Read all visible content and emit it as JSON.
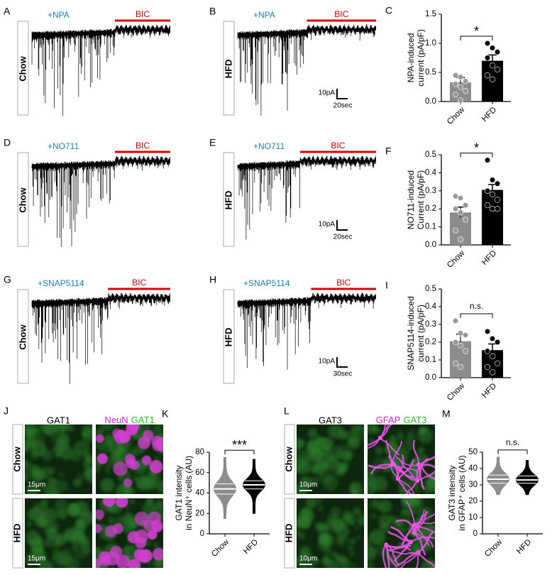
{
  "traces": [
    {
      "letter": "A",
      "drug": "+NPA",
      "blocker": "BIC",
      "group": "Chow"
    },
    {
      "letter": "B",
      "drug": "+NPA",
      "blocker": "BIC",
      "group": "HFD",
      "scale_y": "10pA",
      "scale_x": "20sec"
    },
    {
      "letter": "D",
      "drug": "+NO711",
      "blocker": "BIC",
      "group": "Chow"
    },
    {
      "letter": "E",
      "drug": "+NO711",
      "blocker": "BIC",
      "group": "HFD",
      "scale_y": "10pA",
      "scale_x": "20sec"
    },
    {
      "letter": "G",
      "drug": "+SNAP5114",
      "blocker": "BIC",
      "group": "Chow"
    },
    {
      "letter": "H",
      "drug": "+SNAP5114",
      "blocker": "BIC",
      "group": "HFD",
      "scale_y": "10pA",
      "scale_x": "30sec"
    }
  ],
  "images": [
    {
      "letter": "J",
      "header_left": "GAT1",
      "header_right": [
        "NeuN",
        "GAT1"
      ],
      "rows": [
        "Chow",
        "HFD"
      ],
      "scale": "15μm"
    },
    {
      "letter": "L",
      "header_left": "GAT3",
      "header_right": [
        "GFAP",
        "GAT3"
      ],
      "rows": [
        "Chow",
        "HFD"
      ],
      "scale": "10μm"
    }
  ],
  "chart_data": [
    {
      "type": "bar",
      "panel": "C",
      "ylabel": [
        "NPA-induced",
        "current (pA/pF)"
      ],
      "categories": [
        "Chow",
        "HFD"
      ],
      "values": [
        0.33,
        0.7
      ],
      "errors": [
        0.08,
        0.1
      ],
      "points": [
        [
          0.45,
          0.42,
          0.35,
          0.3,
          0.25,
          0.18,
          0.12,
          0.02
        ],
        [
          1.0,
          0.92,
          0.85,
          0.75,
          0.62,
          0.55,
          0.45,
          0.38
        ]
      ],
      "colors": [
        "#8c8c8c",
        "#000000"
      ],
      "ylim": [
        0,
        1.5
      ],
      "yticks": [
        {
          "value": 0,
          "label": "0.0"
        },
        0.5,
        {
          "value": 1,
          "label": "1.0"
        },
        1.5
      ],
      "significance": "*"
    },
    {
      "type": "bar",
      "panel": "F",
      "ylabel": [
        "NO711-induced",
        "Current (pA/pF)"
      ],
      "categories": [
        "Chow",
        "HFD"
      ],
      "values": [
        0.18,
        0.305
      ],
      "errors": [
        0.03,
        0.03
      ],
      "points": [
        [
          0.27,
          0.26,
          0.22,
          0.2,
          0.18,
          0.14,
          0.08,
          0.03
        ],
        [
          0.47,
          0.36,
          0.34,
          0.3,
          0.28,
          0.25,
          0.22,
          0.2,
          0.2
        ]
      ],
      "colors": [
        "#8c8c8c",
        "#000000"
      ],
      "ylim": [
        0,
        0.5
      ],
      "yticks": [
        {
          "value": 0,
          "label": "0.0"
        },
        0.1,
        0.2,
        0.3,
        0.4,
        0.5
      ],
      "significance": "*"
    },
    {
      "type": "bar",
      "panel": "I",
      "ylabel": [
        "SNAP5114-induced",
        "current (pA/pF)"
      ],
      "categories": [
        "Chow",
        "HFD"
      ],
      "values": [
        0.205,
        0.155
      ],
      "errors": [
        0.04,
        0.035
      ],
      "points": [
        [
          0.32,
          0.25,
          0.24,
          0.2,
          0.18,
          0.15,
          0.08,
          0.06
        ],
        [
          0.26,
          0.22,
          0.2,
          0.15,
          0.12,
          0.08,
          0.06,
          0.03
        ]
      ],
      "colors": [
        "#8c8c8c",
        "#000000"
      ],
      "ylim": [
        0,
        0.5
      ],
      "yticks": [
        {
          "value": 0,
          "label": "0.0"
        },
        0.1,
        0.2,
        0.3,
        0.4,
        0.5
      ],
      "significance": "n.s."
    },
    {
      "type": "violin",
      "panel": "K",
      "ylabel": [
        "GAT1 intensity",
        "in NeuN⁺ cells (AU)"
      ],
      "categories": [
        "Chow",
        "HFD"
      ],
      "stats": [
        [
          15,
          39,
          44,
          49,
          75
        ],
        [
          20,
          44,
          48,
          52,
          73
        ]
      ],
      "colors": [
        "#8c8c8c",
        "#000000"
      ],
      "ylim": [
        0,
        80
      ],
      "yticks": [
        0,
        20,
        40,
        60,
        80
      ],
      "significance": "***"
    },
    {
      "type": "violin",
      "panel": "M",
      "ylabel": [
        "GAT3 intensity",
        "in GFAP⁺ cells (AU)"
      ],
      "categories": [
        "Chow",
        "HFD"
      ],
      "stats": [
        [
          24,
          31,
          33.5,
          36,
          47
        ],
        [
          24,
          31,
          33,
          35.5,
          45
        ]
      ],
      "colors": [
        "#8c8c8c",
        "#000000"
      ],
      "ylim": [
        0,
        50
      ],
      "yticks": [
        0,
        10,
        20,
        30,
        40,
        50
      ],
      "significance": "n.s."
    }
  ]
}
